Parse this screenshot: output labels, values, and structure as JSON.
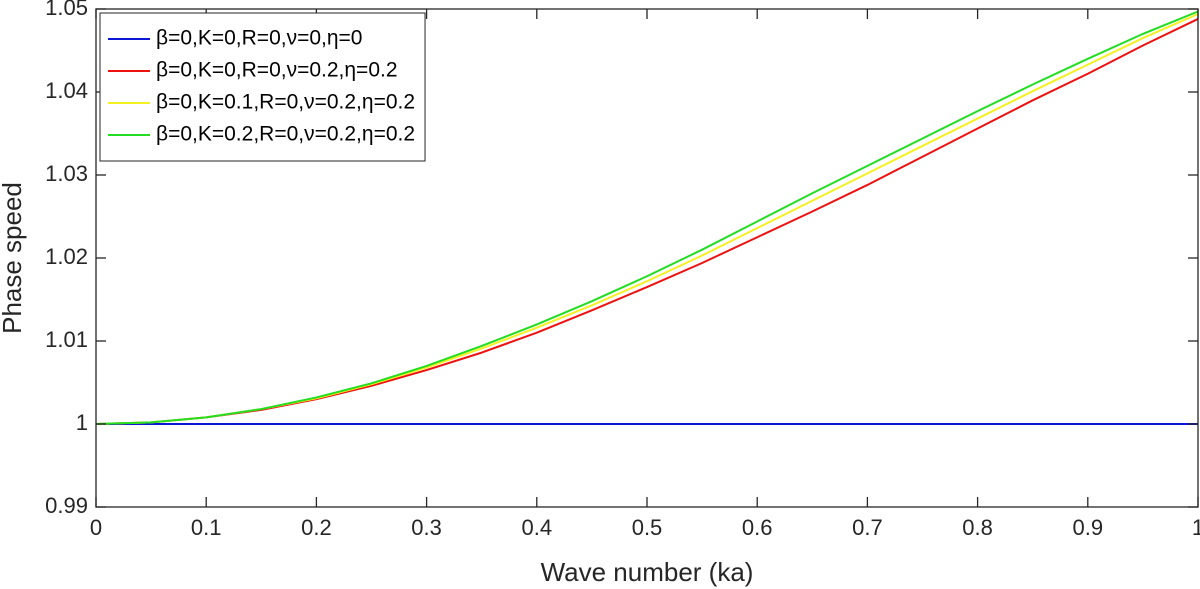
{
  "chart_data": {
    "type": "line",
    "x_label": "Wave number (ka)",
    "y_label": "Phase speed",
    "x": [
      0,
      0.05,
      0.1,
      0.15,
      0.2,
      0.25,
      0.3,
      0.35,
      0.4,
      0.45,
      0.5,
      0.55,
      0.6,
      0.65,
      0.7,
      0.75,
      0.8,
      0.85,
      0.9,
      0.95,
      1
    ],
    "series": [
      {
        "name": "β=0,K=0,R=0,ν=0,η=0",
        "color": "#0b16d6",
        "values": [
          1,
          1,
          1,
          1,
          1,
          1,
          1,
          1,
          1,
          1,
          1,
          1,
          1,
          1,
          1,
          1,
          1,
          1,
          1,
          1,
          1
        ]
      },
      {
        "name": "β=0,K=0,R=0,ν=0.2,η=0.2",
        "color": "#ee1111",
        "values": [
          1.0,
          1.0002,
          1.0008,
          1.0017,
          1.003,
          1.0046,
          1.0065,
          1.0086,
          1.011,
          1.0137,
          1.0165,
          1.0194,
          1.0225,
          1.0256,
          1.0288,
          1.0322,
          1.0356,
          1.039,
          1.0422,
          1.0456,
          1.0488
        ]
      },
      {
        "name": "β=0,K=0.1,R=0,ν=0.2,η=0.2",
        "color": "#f5f020",
        "values": [
          1.0,
          1.0002,
          1.0008,
          1.0018,
          1.0031,
          1.0048,
          1.0068,
          1.0091,
          1.0116,
          1.0143,
          1.0172,
          1.0203,
          1.0236,
          1.0269,
          1.0302,
          1.0335,
          1.0368,
          1.0401,
          1.0433,
          1.0465,
          1.0494
        ]
      },
      {
        "name": "β=0,K=0.2,R=0,ν=0.2,η=0.2",
        "color": "#22dd22",
        "values": [
          1.0,
          1.0002,
          1.0008,
          1.0018,
          1.0032,
          1.0049,
          1.007,
          1.0094,
          1.012,
          1.0148,
          1.0178,
          1.021,
          1.0244,
          1.0278,
          1.0311,
          1.0344,
          1.0377,
          1.0409,
          1.044,
          1.047,
          1.0497
        ]
      }
    ],
    "xlim": [
      0,
      1
    ],
    "xticks": [
      0,
      0.1,
      0.2,
      0.3,
      0.4,
      0.5,
      0.6,
      0.7,
      0.8,
      0.9,
      1
    ],
    "ylim": [
      0.99,
      1.05
    ],
    "yticks": [
      0.99,
      1,
      1.01,
      1.02,
      1.03,
      1.04,
      1.05
    ],
    "legend": "upper-left"
  }
}
